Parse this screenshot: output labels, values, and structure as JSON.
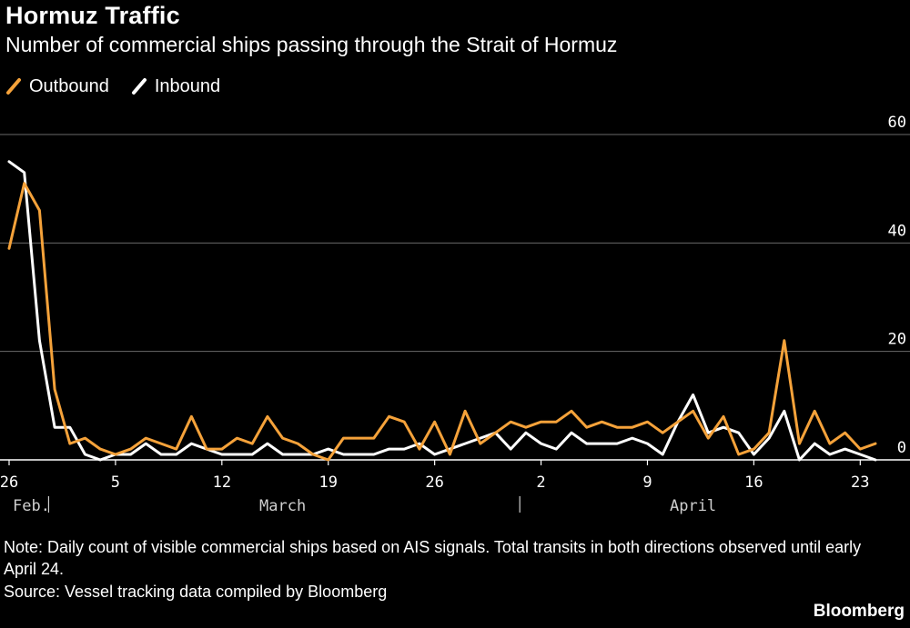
{
  "title": "Hormuz Traffic",
  "subtitle": "Number of commercial ships passing through the Strait of Hormuz",
  "brand": "Bloomberg",
  "note": "Note: Daily count of visible commercial ships based on AIS signals. Total transits in both directions observed until early April 24.",
  "source": "Source: Vessel tracking data compiled by Bloomberg",
  "colors": {
    "outbound": "#f5a23a",
    "inbound": "#ffffff",
    "grid": "#6a6a6a",
    "background": "#000000"
  },
  "chart_data": {
    "type": "line",
    "title": "Hormuz Traffic",
    "subtitle": "Number of commercial ships passing through the Strait of Hormuz",
    "xlabel": "",
    "ylabel": "",
    "ylim": [
      0,
      60
    ],
    "yticks": [
      0,
      20,
      40,
      60
    ],
    "grid": true,
    "legend_position": "top-left",
    "x_start_date": "Feb 26",
    "x_tick_labels": [
      "26",
      "5",
      "12",
      "19",
      "26",
      "2",
      "9",
      "16",
      "23"
    ],
    "x_tick_dates": [
      "Feb 26",
      "Mar 5",
      "Mar 12",
      "Mar 19",
      "Mar 26",
      "Apr 2",
      "Apr 9",
      "Apr 16",
      "Apr 23"
    ],
    "x_period_labels": [
      {
        "label": "Feb.",
        "date": "Feb 26"
      },
      {
        "label": "March",
        "date": "Mar 16"
      },
      {
        "label": "April",
        "date": "Apr 12"
      }
    ],
    "x_separators": [
      "Mar 1",
      "Apr 1"
    ],
    "x": [
      "Feb 26",
      "Feb 27",
      "Feb 28",
      "Mar 1",
      "Mar 2",
      "Mar 3",
      "Mar 4",
      "Mar 5",
      "Mar 6",
      "Mar 7",
      "Mar 8",
      "Mar 9",
      "Mar 10",
      "Mar 11",
      "Mar 12",
      "Mar 13",
      "Mar 14",
      "Mar 15",
      "Mar 16",
      "Mar 17",
      "Mar 18",
      "Mar 19",
      "Mar 20",
      "Mar 21",
      "Mar 22",
      "Mar 23",
      "Mar 24",
      "Mar 25",
      "Mar 26",
      "Mar 27",
      "Mar 28",
      "Mar 29",
      "Mar 30",
      "Mar 31",
      "Apr 1",
      "Apr 2",
      "Apr 3",
      "Apr 4",
      "Apr 5",
      "Apr 6",
      "Apr 7",
      "Apr 8",
      "Apr 9",
      "Apr 10",
      "Apr 11",
      "Apr 12",
      "Apr 13",
      "Apr 14",
      "Apr 15",
      "Apr 16",
      "Apr 17",
      "Apr 18",
      "Apr 19",
      "Apr 20",
      "Apr 21",
      "Apr 22",
      "Apr 23",
      "Apr 24"
    ],
    "series": [
      {
        "name": "Outbound",
        "color": "#f5a23a",
        "values": [
          39,
          51,
          46,
          13,
          3,
          4,
          2,
          1,
          2,
          4,
          3,
          2,
          8,
          2,
          2,
          4,
          3,
          8,
          4,
          3,
          1,
          0,
          4,
          4,
          4,
          8,
          7,
          2,
          7,
          1,
          9,
          3,
          5,
          7,
          6,
          7,
          7,
          9,
          6,
          7,
          6,
          6,
          7,
          5,
          7,
          9,
          4,
          8,
          1,
          2,
          5,
          22,
          3,
          9,
          3,
          5,
          2,
          3
        ]
      },
      {
        "name": "Inbound",
        "color": "#ffffff",
        "values": [
          55,
          53,
          22,
          6,
          6,
          1,
          0,
          1,
          1,
          3,
          1,
          1,
          3,
          2,
          1,
          1,
          1,
          3,
          1,
          1,
          1,
          2,
          1,
          1,
          1,
          2,
          2,
          3,
          1,
          2,
          3,
          4,
          5,
          2,
          5,
          3,
          2,
          5,
          3,
          3,
          3,
          4,
          3,
          1,
          7,
          12,
          5,
          6,
          5,
          1,
          4,
          9,
          0,
          3,
          1,
          2,
          1,
          0
        ]
      }
    ]
  }
}
